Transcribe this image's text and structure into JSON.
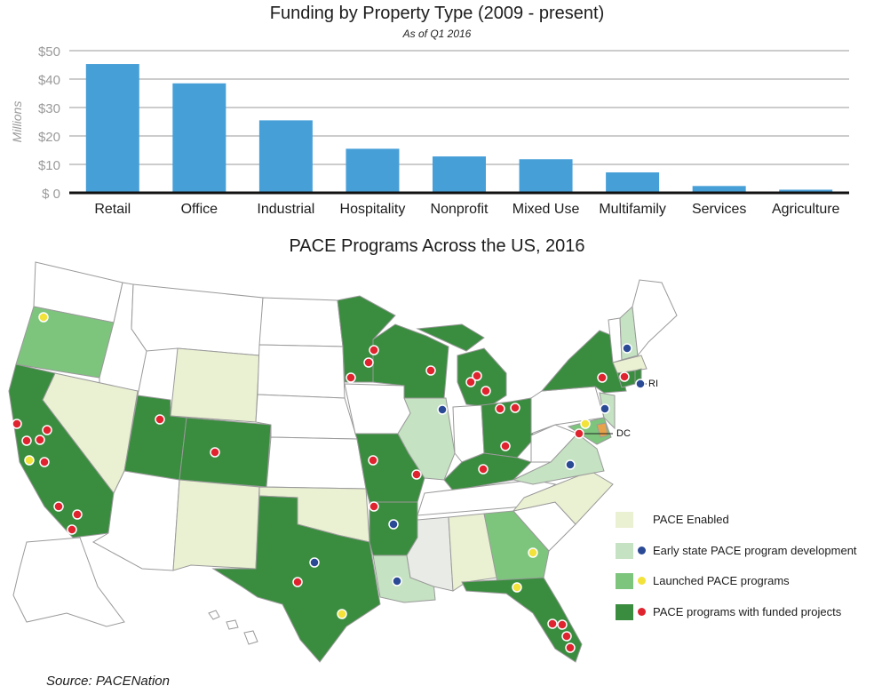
{
  "chart_data": {
    "type": "bar",
    "title": "Funding by Property Type (2009 - present)",
    "subtitle": "As of Q1 2016",
    "ylabel": "Millions",
    "ylim": [
      0,
      50
    ],
    "yticks": [
      "$ 0",
      "$10",
      "$20",
      "$30",
      "$40",
      "$50"
    ],
    "ytick_values": [
      0,
      10,
      20,
      30,
      40,
      50
    ],
    "categories": [
      "Retail",
      "Office",
      "Industrial",
      "Hospitality",
      "Nonprofit",
      "Mixed Use",
      "Multifamily",
      "Services",
      "Agriculture"
    ],
    "values": [
      45.3,
      38.5,
      25.5,
      15.5,
      12.8,
      11.8,
      7.2,
      2.4,
      1.1
    ],
    "grid": "horizontal",
    "bar_color": "#479fd8"
  },
  "map": {
    "title": "PACE Programs Across the US, 2016",
    "labels": {
      "ri": "RI",
      "dc": "DC"
    },
    "legend": [
      {
        "label": "PACE Enabled",
        "color": "#eaf0d2",
        "dot": ""
      },
      {
        "label": "Early state PACE program development",
        "color": "#c5e2c2",
        "dot": "#2b4a96"
      },
      {
        "label": "Launched PACE programs",
        "color": "#7dc57d",
        "dot": "#f2e23a"
      },
      {
        "label": "PACE programs with funded projects",
        "color": "#3a8c3f",
        "dot": "#e0242f"
      }
    ]
  },
  "source": "Source: PACENation"
}
